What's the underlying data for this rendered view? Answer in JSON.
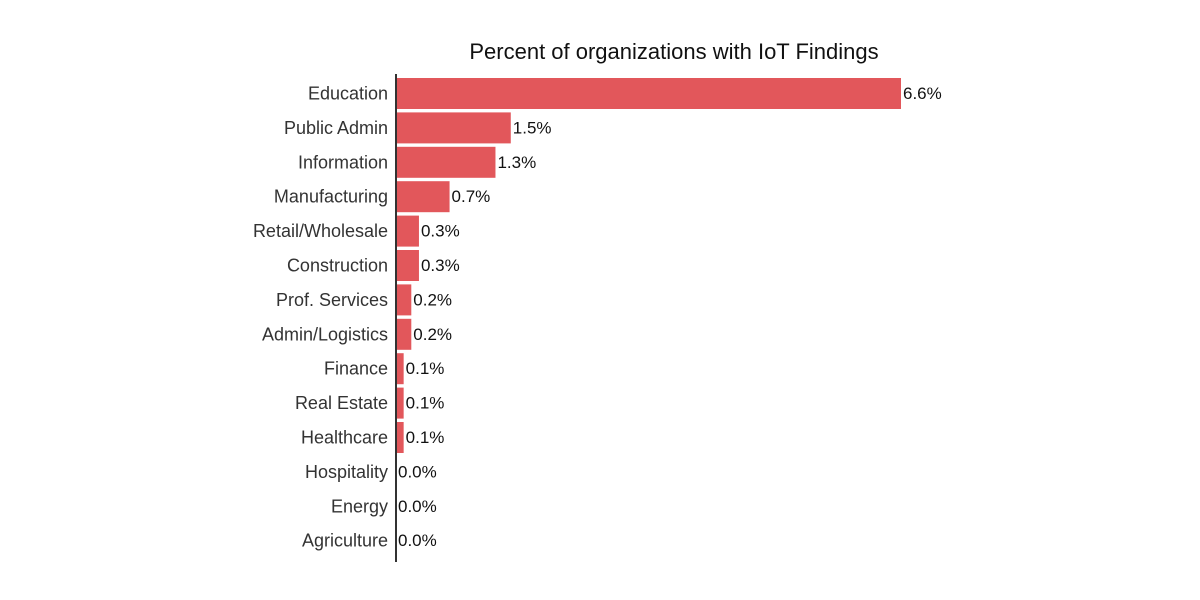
{
  "chart_data": {
    "type": "bar",
    "orientation": "horizontal",
    "title": "Percent of organizations with IoT Findings",
    "xlabel": "",
    "ylabel": "",
    "categories": [
      "Education",
      "Public Admin",
      "Information",
      "Manufacturing",
      "Retail/Wholesale",
      "Construction",
      "Prof. Services",
      "Admin/Logistics",
      "Finance",
      "Real Estate",
      "Healthcare",
      "Hospitality",
      "Energy",
      "Agriculture"
    ],
    "values": [
      6.6,
      1.5,
      1.3,
      0.7,
      0.3,
      0.3,
      0.2,
      0.2,
      0.1,
      0.1,
      0.1,
      0.0,
      0.0,
      0.0
    ],
    "value_labels": [
      "6.6%",
      "1.5%",
      "1.3%",
      "0.7%",
      "0.3%",
      "0.3%",
      "0.2%",
      "0.2%",
      "0.1%",
      "0.1%",
      "0.1%",
      "0.0%",
      "0.0%",
      "0.0%"
    ],
    "xlim": [
      0,
      6.6
    ],
    "grid": false,
    "legend": "none",
    "bar_color": "#e2575b",
    "axis_color": "#333333"
  }
}
